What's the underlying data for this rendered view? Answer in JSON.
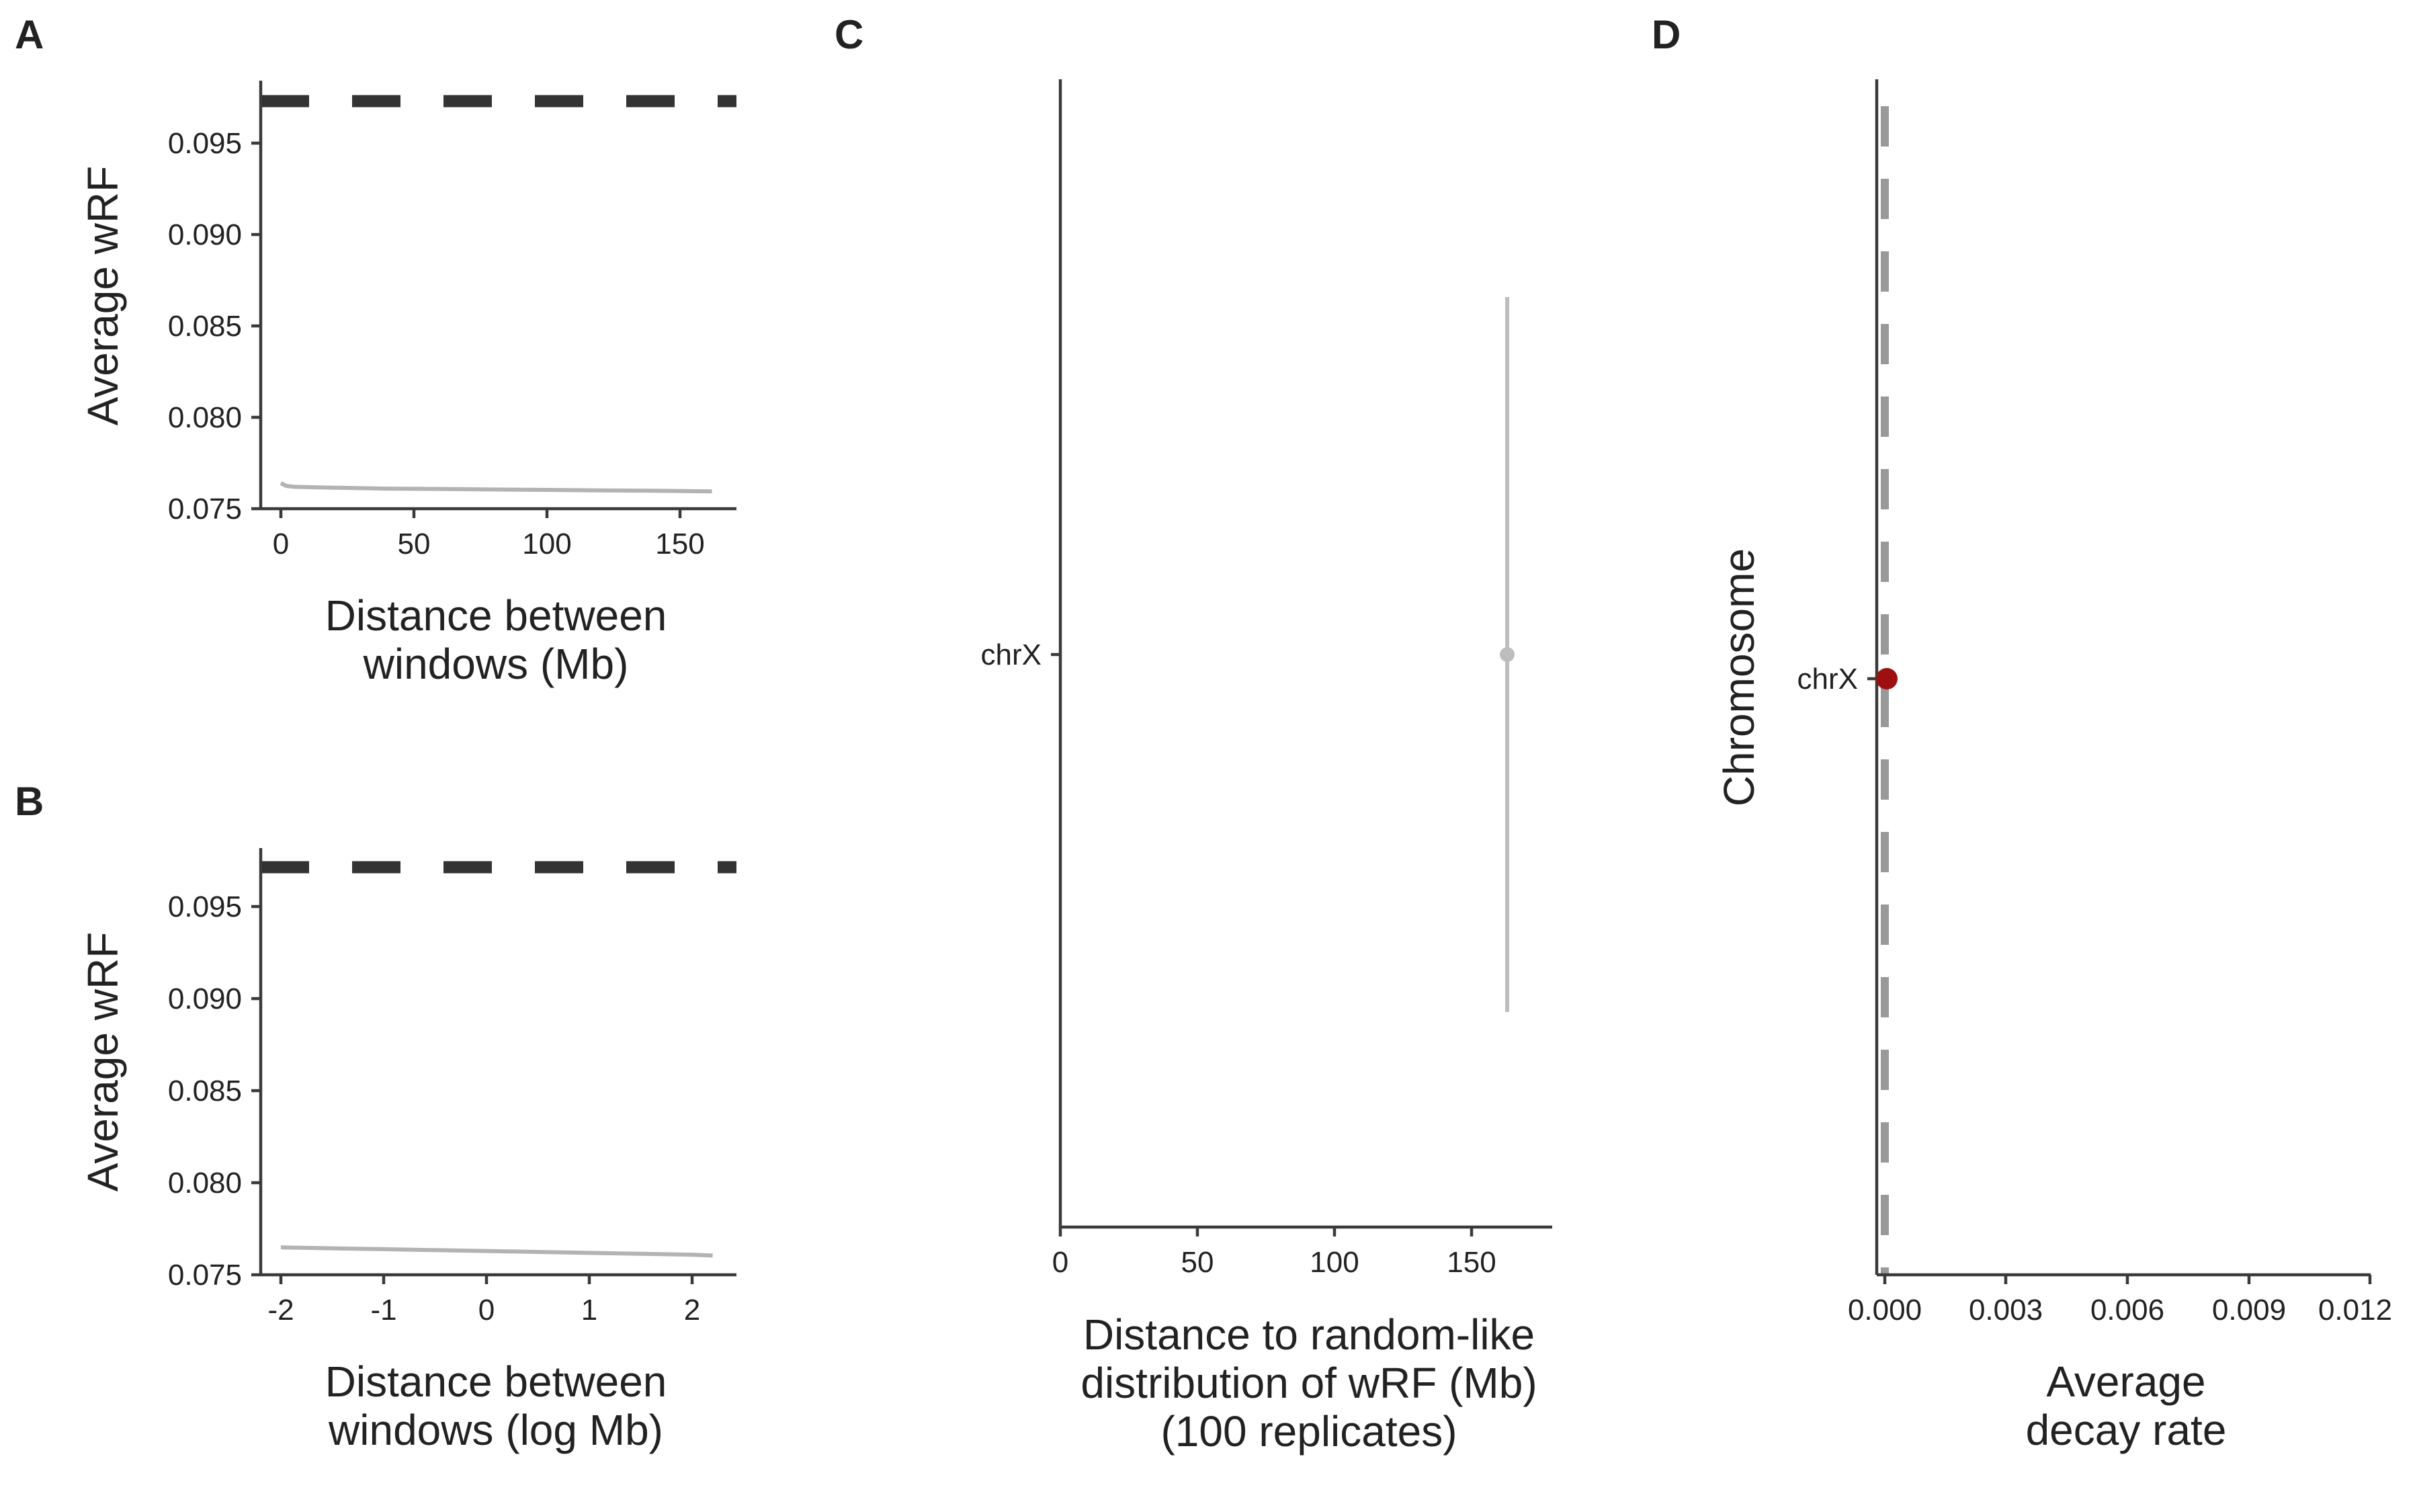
{
  "chart_data": [
    {
      "panel": "A",
      "type": "line",
      "xlabel": [
        "Distance between",
        "windows (Mb)"
      ],
      "ylabel": "Average wRF",
      "xlim": [
        -5,
        170
      ],
      "ylim": [
        0.075,
        0.098
      ],
      "x_ticks": [
        0,
        50,
        100,
        150
      ],
      "x_tick_labels": [
        "0",
        "50",
        "100",
        "150"
      ],
      "y_ticks": [
        0.075,
        0.08,
        0.085,
        0.09,
        0.095
      ],
      "y_tick_labels": [
        "0.075",
        "0.080",
        "0.085",
        "0.090",
        "0.095"
      ],
      "reference_line": {
        "y": 0.0973,
        "style": "dashed",
        "color": "#333333"
      },
      "series": [
        {
          "color": "#b3b3b3",
          "x": [
            0,
            2,
            5,
            10,
            20,
            40,
            60,
            80,
            100,
            120,
            140,
            162
          ],
          "y": [
            0.0764,
            0.07625,
            0.0762,
            0.07618,
            0.07615,
            0.0761,
            0.07608,
            0.07605,
            0.07603,
            0.076,
            0.07598,
            0.07595
          ]
        }
      ]
    },
    {
      "panel": "B",
      "type": "line",
      "xlabel": [
        "Distance between",
        "windows (log Mb)"
      ],
      "ylabel": "Average wRF",
      "xlim": [
        -2.2,
        2.4
      ],
      "ylim": [
        0.075,
        0.098
      ],
      "x_ticks": [
        -2,
        -1,
        0,
        1,
        2
      ],
      "x_tick_labels": [
        "-2",
        "-1",
        "0",
        "1",
        "2"
      ],
      "y_ticks": [
        0.075,
        0.08,
        0.085,
        0.09,
        0.095
      ],
      "y_tick_labels": [
        "0.075",
        "0.080",
        "0.085",
        "0.090",
        "0.095"
      ],
      "reference_line": {
        "y": 0.0973,
        "style": "dashed",
        "color": "#333333"
      },
      "series": [
        {
          "color": "#b3b3b3",
          "x": [
            -2,
            -1.5,
            -1,
            -0.5,
            0,
            0.5,
            1,
            1.5,
            2,
            2.2
          ],
          "y": [
            0.0765,
            0.07645,
            0.0764,
            0.07635,
            0.0763,
            0.07625,
            0.0762,
            0.07615,
            0.0761,
            0.07605
          ]
        }
      ]
    },
    {
      "panel": "C",
      "type": "scatter",
      "xlabel": [
        "Distance to random-like",
        "distribution of wRF (Mb)",
        "(100 replicates)"
      ],
      "ylabel": "",
      "xlim": [
        0,
        180
      ],
      "x_ticks": [
        0,
        50,
        100,
        150
      ],
      "x_tick_labels": [
        "0",
        "50",
        "100",
        "150"
      ],
      "categories": [
        "chrX"
      ],
      "points": [
        {
          "category": "chrX",
          "x": 163,
          "color": "#bdbdbd",
          "spread": 0.62
        }
      ]
    },
    {
      "panel": "D",
      "type": "scatter",
      "xlabel": [
        "Average",
        "decay rate"
      ],
      "ylabel": "Chromosome",
      "xlim": [
        -0.0001,
        0.012
      ],
      "x_ticks": [
        0,
        0.003,
        0.006,
        0.009,
        0.012
      ],
      "x_tick_labels": [
        "0.000",
        "0.003",
        "0.006",
        "0.009",
        "0.012"
      ],
      "categories": [
        "chrX"
      ],
      "reference_line": {
        "x": 0,
        "style": "dashed",
        "color": "#999999"
      },
      "points": [
        {
          "category": "chrX",
          "x": 5e-05,
          "color": "#9e1010"
        }
      ]
    }
  ]
}
